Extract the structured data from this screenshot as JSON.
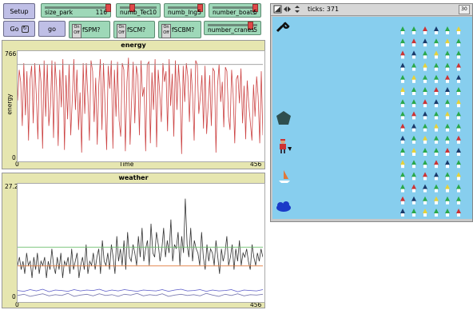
{
  "buttons": {
    "setup": "Setup",
    "go_forever": "Go",
    "go_once": "go"
  },
  "sliders": [
    {
      "label": "size_park",
      "value": "116",
      "fraction": 0.95
    },
    {
      "label": "numb_Tec",
      "value": "10",
      "fraction": 0.5
    },
    {
      "label": "numb_Ing",
      "value": "5",
      "fraction": 0.85
    },
    {
      "label": "number_boats",
      "value": "5",
      "fraction": 0.85
    },
    {
      "label": "number_cranes",
      "value": "5",
      "fraction": 0.78
    }
  ],
  "switches": [
    {
      "label": "fSPM?",
      "on": "On",
      "off": "Off"
    },
    {
      "label": "fSCM?",
      "on": "On",
      "off": "Off"
    },
    {
      "label": "fSCBM?",
      "on": "On",
      "off": "Off"
    }
  ],
  "energy_plot": {
    "chart_data": {
      "type": "line",
      "title": "energy",
      "xlabel": "Time",
      "ylabel": "energy",
      "xlim": [
        0,
        456
      ],
      "ylim": [
        0,
        766
      ],
      "x_ticks": [
        "0",
        "456"
      ],
      "y_ticks": [
        "766",
        "0"
      ],
      "series": [
        {
          "color": "#cc4444",
          "values": [
            420,
            650,
            560,
            230,
            700,
            310,
            640,
            120,
            580,
            680,
            250,
            700,
            450,
            130,
            690,
            560,
            60,
            720,
            300,
            690,
            230,
            380,
            720,
            140,
            710,
            520,
            80,
            650,
            370,
            730,
            50,
            610,
            280,
            690,
            160,
            420,
            730,
            350,
            650,
            200,
            480,
            30,
            700,
            320,
            700,
            450,
            120,
            720,
            640,
            260,
            590,
            90,
            540,
            730,
            200,
            700,
            380,
            50,
            680,
            510,
            720,
            60,
            650,
            300,
            710,
            270,
            150,
            700,
            650,
            40,
            560,
            740,
            90,
            420,
            710,
            250,
            680,
            600,
            160,
            720,
            450,
            520,
            40,
            690,
            710,
            100,
            630,
            350,
            730,
            70,
            650,
            480,
            260,
            700,
            560,
            640,
            190,
            730,
            380,
            620,
            150,
            720,
            350,
            690,
            500,
            20,
            680,
            410,
            700,
            600,
            260,
            660,
            470,
            120,
            720,
            690,
            320,
            450,
            610,
            210,
            680,
            170,
            390,
            610,
            230,
            660,
            640,
            30,
            540,
            690,
            410,
            560,
            220,
            670,
            640,
            300,
            200,
            650,
            470,
            100,
            580,
            610,
            400,
            660,
            250,
            530,
            130,
            570,
            390,
            250,
            120,
            540,
            300,
            600,
            450,
            100,
            640,
            160
          ]
        },
        {
          "color": "#9a9a9a",
          "values": [
            690,
            690
          ]
        }
      ]
    }
  },
  "weather_plot": {
    "chart_data": {
      "type": "line",
      "title": "weather",
      "xlim": [
        0,
        456
      ],
      "ylim": [
        0,
        27.2
      ],
      "x_ticks": [
        "0",
        "456"
      ],
      "y_ticks": [
        "27.2",
        "0"
      ],
      "series": [
        {
          "color": "#333333",
          "values": [
            8,
            10,
            7,
            9,
            6,
            11,
            8,
            9,
            5,
            10,
            7,
            11,
            6,
            9,
            8,
            10,
            5,
            9,
            7,
            12,
            8,
            6,
            10,
            7,
            11,
            5,
            9,
            8,
            10,
            6,
            12,
            7,
            9,
            11,
            5,
            8,
            10,
            7,
            13,
            6,
            9,
            8,
            11,
            7,
            10,
            12,
            6,
            14,
            9,
            8,
            11,
            7,
            13,
            10,
            6,
            15,
            9,
            12,
            8,
            14,
            7,
            16,
            10,
            9,
            13,
            11,
            8,
            15,
            10,
            17,
            9,
            12,
            14,
            8,
            18,
            11,
            10,
            16,
            13,
            9,
            12,
            17,
            10,
            14,
            11,
            19,
            9,
            13,
            12,
            16,
            8,
            15,
            11,
            24,
            13,
            10,
            17,
            9,
            14,
            12,
            11,
            8,
            16,
            10,
            7,
            13,
            9,
            12,
            11,
            8,
            14,
            10,
            6,
            12,
            9,
            11,
            15,
            8,
            10,
            13,
            7,
            12,
            9,
            14,
            8,
            11,
            10,
            12,
            9,
            7,
            13,
            10,
            8,
            11,
            9,
            12,
            10
          ]
        },
        {
          "color": "#e07838",
          "values": [
            7.9,
            7.9
          ]
        },
        {
          "color": "#6fbf6f",
          "values": [
            12.4,
            12.4
          ]
        },
        {
          "color": "#5a5ac8",
          "values": [
            2,
            1.8,
            2.2,
            1.9,
            2.3,
            1.7,
            2.1,
            2,
            1.8,
            2.2,
            1.9,
            2.1,
            2,
            2.3,
            1.8,
            2.1,
            1.9,
            2.2,
            2,
            1.8,
            2.1,
            2,
            1.9,
            2.2,
            1.8,
            2.1,
            2.3,
            1.9,
            2,
            2.2,
            1.8,
            2.1,
            1.9,
            2,
            2.2,
            1.7,
            2.1,
            2,
            1.9,
            2.2
          ]
        },
        {
          "color": "#7a7ab0",
          "values": [
            0.8,
            1.1,
            0.6,
            0.9,
            1.2,
            0.7,
            1,
            0.8,
            1.3,
            0.6,
            0.9,
            1.1,
            0.7,
            1.2,
            0.8,
            1,
            0.6,
            1.1,
            0.9,
            1.3,
            0.7,
            1,
            0.8,
            1.2,
            0.6,
            0.9,
            1.1,
            0.8,
            1,
            0.7,
            1.3,
            0.9,
            0.6,
            1.1,
            0.8,
            1.2,
            0.7,
            1,
            0.9,
            1.1
          ]
        }
      ]
    }
  },
  "view": {
    "ticks_label": "ticks: 371",
    "speed_label": "30",
    "icons": [
      "wrench-icon",
      "pentagon-icon",
      "worker-icon",
      "sailboat-icon",
      "cloud-icon"
    ],
    "turtle_colors": {
      "white": "#ffffff",
      "green": "#2aa84a",
      "navy": "#1a3a6a",
      "red": "#cc3333",
      "yellow": "#e6d23a"
    }
  }
}
